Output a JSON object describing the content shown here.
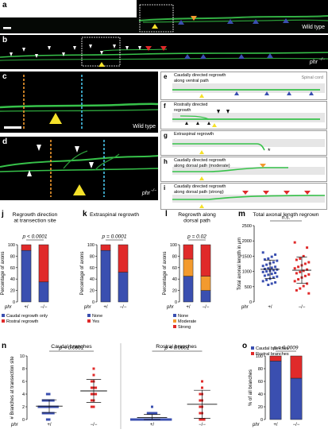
{
  "panels": {
    "a": {
      "letter": "a",
      "tag": "Wild type"
    },
    "b": {
      "letter": "b",
      "tag": "phr"
    },
    "c": {
      "letter": "c",
      "tag": "Wild type"
    },
    "d": {
      "letter": "d",
      "tag": "phr"
    },
    "e": {
      "letter": "e",
      "label": "Caudally directed regrowth\nalong ventral path",
      "extra": "Spinal cord"
    },
    "f": {
      "letter": "f",
      "label": "Rostrally directed\nregrowth"
    },
    "g": {
      "letter": "g",
      "label": "Extraspinal regrowth"
    },
    "h": {
      "letter": "h",
      "label": "Caudally directed regrowth\nalong dorsal path (moderate)"
    },
    "i": {
      "letter": "i",
      "label": "Caudally directed regrowth\nalong dorsal path (strong)"
    }
  },
  "phr_superscript": "−/−",
  "colors": {
    "blue": "#3a4fb0",
    "red": "#e02a2a",
    "orange": "#f39a2e",
    "green": "#37c24a",
    "yellow": "#f5e12a",
    "cyan": "#47c2e8"
  },
  "chart_data": [
    {
      "id": "j",
      "type": "bar",
      "stacked": true,
      "title": "Regrowth direction\nat transection site",
      "ylabel": "Percentage of axons",
      "ylim": [
        0,
        100
      ],
      "yticks": [
        0,
        20,
        40,
        60,
        80,
        100
      ],
      "categories": [
        "+/",
        "−/−"
      ],
      "group_label": "phr",
      "series": [
        {
          "name": "Caudal regrowth only",
          "color": "#3a4fb0",
          "values": [
            90,
            35
          ]
        },
        {
          "name": "Rostral regrowth",
          "color": "#e02a2a",
          "values": [
            10,
            65
          ]
        }
      ],
      "p_text": "p < 0.0001"
    },
    {
      "id": "k",
      "type": "bar",
      "stacked": true,
      "title": "Extraspinal regrowth",
      "ylabel": "Percentage of axons",
      "ylim": [
        0,
        100
      ],
      "yticks": [
        0,
        20,
        40,
        60,
        80,
        100
      ],
      "categories": [
        "+/",
        "−/−"
      ],
      "group_label": "phr",
      "series": [
        {
          "name": "None",
          "color": "#3a4fb0",
          "values": [
            90,
            52
          ]
        },
        {
          "name": "Yes",
          "color": "#e02a2a",
          "values": [
            10,
            48
          ]
        }
      ],
      "p_text": "p = 0.0001"
    },
    {
      "id": "l",
      "type": "bar",
      "stacked": true,
      "title": "Regrowth along\ndorsal path",
      "ylabel": "Percentage of axons",
      "ylim": [
        0,
        100
      ],
      "yticks": [
        0,
        20,
        40,
        60,
        80,
        100
      ],
      "categories": [
        "+/",
        "−/−"
      ],
      "group_label": "phr",
      "series": [
        {
          "name": "None",
          "color": "#3a4fb0",
          "values": [
            45,
            20
          ]
        },
        {
          "name": "Moderate",
          "color": "#f39a2e",
          "values": [
            30,
            25
          ]
        },
        {
          "name": "Strong",
          "color": "#e02a2a",
          "values": [
            25,
            55
          ]
        }
      ],
      "p_text": "p = 0.02"
    },
    {
      "id": "m",
      "type": "scatter",
      "title": "Total axonal length regrown",
      "ylabel": "Total axonal length in μm",
      "ylim": [
        0,
        2500
      ],
      "yticks": [
        0,
        500,
        1000,
        1500,
        2000,
        2500
      ],
      "categories": [
        "+/",
        "−/−"
      ],
      "group_label": "phr",
      "groups": [
        {
          "name": "+/",
          "color": "#3a4fb0",
          "mean": 1070,
          "sd": 300,
          "values": [
            1620,
            1550,
            1480,
            1420,
            1390,
            1350,
            1300,
            1260,
            1220,
            1180,
            1150,
            1120,
            1100,
            1080,
            1060,
            1040,
            1020,
            1000,
            980,
            950,
            920,
            890,
            860,
            830,
            800,
            760,
            720,
            680,
            640,
            600,
            560
          ]
        },
        {
          "name": "−/−",
          "color": "#e02a2a",
          "mean": 1040,
          "sd": 430,
          "values": [
            1950,
            1780,
            1500,
            1420,
            1380,
            1300,
            1250,
            1200,
            1150,
            1100,
            1060,
            1020,
            980,
            940,
            900,
            850,
            800,
            740,
            680,
            600,
            520,
            440,
            380,
            280
          ]
        }
      ],
      "p_text": "n.s."
    },
    {
      "id": "n1",
      "type": "scatter",
      "title": "Caudal branches",
      "ylabel": "# Branches at transection site",
      "ylim": [
        0,
        10
      ],
      "yticks": [
        0,
        2,
        4,
        6,
        8,
        10
      ],
      "categories": [
        "+/",
        "−/−"
      ],
      "group_label": "phr",
      "groups": [
        {
          "name": "+/",
          "color": "#3a4fb0",
          "mean": 2.1,
          "sd": 1.0,
          "values": [
            0,
            0,
            1,
            1,
            1,
            1,
            1,
            1,
            2,
            2,
            2,
            2,
            2,
            2,
            2,
            2,
            2,
            2,
            3,
            3,
            3,
            3,
            3,
            3,
            4,
            4
          ]
        },
        {
          "name": "−/−",
          "color": "#e02a2a",
          "mean": 4.5,
          "sd": 1.8,
          "values": [
            2,
            2,
            3,
            3,
            4,
            4,
            4,
            5,
            5,
            5,
            6,
            6,
            7,
            8
          ]
        }
      ],
      "p_text": "p < 0.0001"
    },
    {
      "id": "n2",
      "type": "scatter",
      "title": "Rostral branches",
      "ylim": [
        0,
        10
      ],
      "yticks": [
        0,
        2,
        4,
        6,
        8,
        10
      ],
      "categories": [
        "+/",
        "−/−"
      ],
      "group_label": "phr",
      "groups": [
        {
          "name": "+/",
          "color": "#3a4fb0",
          "mean": 0.3,
          "sd": 0.5,
          "values": [
            0,
            0,
            0,
            0,
            0,
            0,
            0,
            0,
            0,
            0,
            0,
            0,
            0,
            0,
            0,
            0,
            0,
            0,
            0,
            0,
            1,
            1,
            1,
            1,
            1,
            2
          ]
        },
        {
          "name": "−/−",
          "color": "#e02a2a",
          "mean": 2.4,
          "sd": 2.2,
          "values": [
            0,
            0,
            0,
            1,
            1,
            2,
            2,
            3,
            3,
            4,
            4,
            5,
            6
          ]
        }
      ],
      "p_text": "p < 0.0001"
    },
    {
      "id": "o",
      "type": "bar",
      "stacked": true,
      "ylabel": "% of all branches",
      "ylim": [
        0,
        100
      ],
      "yticks": [
        0,
        20,
        40,
        60,
        80,
        100
      ],
      "categories": [
        "+/",
        "−/−"
      ],
      "group_label": "phr",
      "series": [
        {
          "name": "Caudal branches",
          "color": "#3a4fb0",
          "values": [
            92,
            65
          ]
        },
        {
          "name": "Rostral branches",
          "color": "#e02a2a",
          "values": [
            8,
            35
          ]
        }
      ],
      "p_text": "p = 0.0009"
    }
  ]
}
